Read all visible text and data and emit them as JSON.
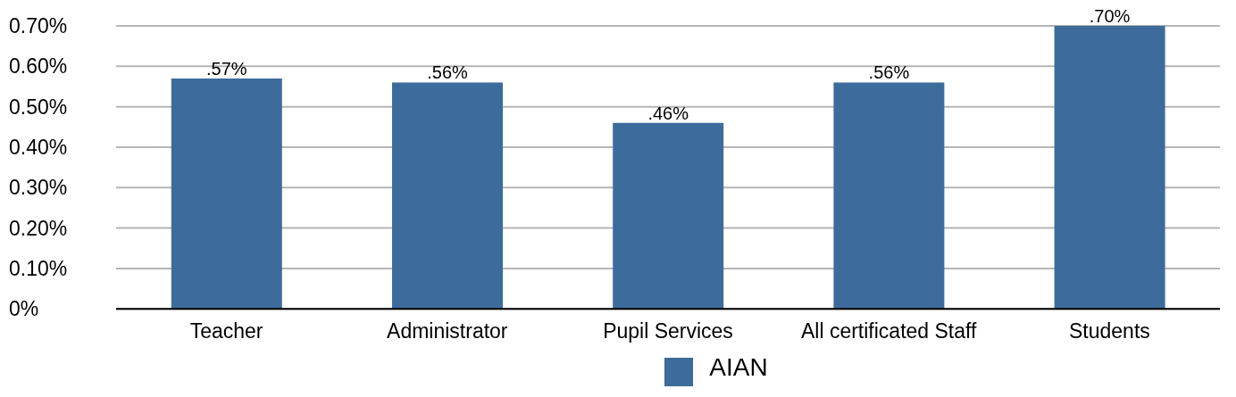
{
  "chart_data": {
    "type": "bar",
    "categories": [
      "Teacher",
      "Administrator",
      "Pupil Services",
      "All certificated Staff",
      "Students"
    ],
    "series": [
      {
        "name": "AIAN",
        "color": "#3d6b9c",
        "values": [
          0.57,
          0.56,
          0.46,
          0.56,
          0.7
        ],
        "value_labels": [
          ".57%",
          ".56%",
          ".46%",
          ".56%",
          ".70%"
        ]
      }
    ],
    "ylim": [
      0,
      0.7
    ],
    "yticks": [
      {
        "value": 0,
        "label": "0%"
      },
      {
        "value": 0.1,
        "label": "0.10%"
      },
      {
        "value": 0.2,
        "label": "0.20%"
      },
      {
        "value": 0.3,
        "label": "0.30%"
      },
      {
        "value": 0.4,
        "label": "0.40%"
      },
      {
        "value": 0.5,
        "label": "0.50%"
      },
      {
        "value": 0.6,
        "label": "0.60%"
      },
      {
        "value": 0.7,
        "label": "0.70%"
      }
    ],
    "grid": "y",
    "legend": "bottom"
  }
}
